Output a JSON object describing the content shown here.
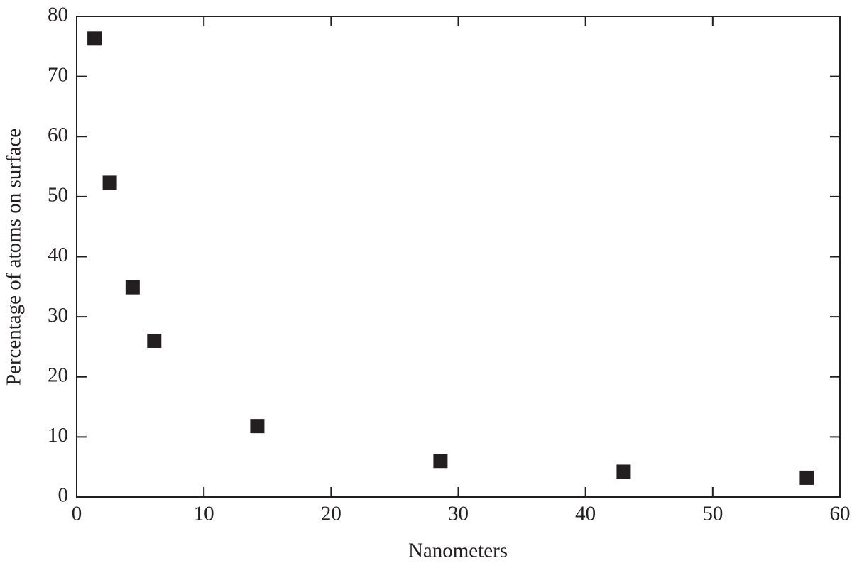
{
  "chart_data": {
    "type": "scatter",
    "xlabel": "Nanometers",
    "ylabel": "Percentage of atoms on surface",
    "x": [
      1.4,
      2.6,
      4.4,
      6.1,
      14.2,
      28.6,
      43,
      57.4
    ],
    "values": [
      76.3,
      52.3,
      34.9,
      26.0,
      11.8,
      6.0,
      4.2,
      3.2
    ],
    "color": "#231f20",
    "xlim": [
      0,
      60
    ],
    "xticks": [
      0,
      10,
      20,
      30,
      40,
      50,
      60
    ],
    "ylim": [
      0,
      80
    ],
    "yticks": [
      0,
      10,
      20,
      30,
      40,
      50,
      60,
      70,
      80
    ]
  }
}
